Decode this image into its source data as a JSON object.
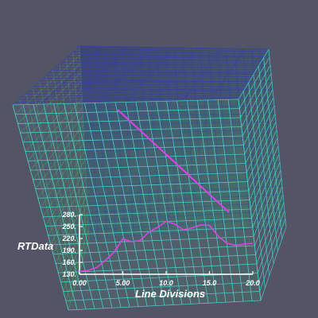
{
  "colors": {
    "background": "#535466",
    "mesh_front": "#48d6d0",
    "mesh_back": "#3a3fa0",
    "mesh_green": "#3fbf4a",
    "probe_line": "#e040e8",
    "plot_curve": "#d946e0",
    "axis": "#ffffff"
  },
  "chart_data": {
    "type": "line",
    "title": "",
    "xlabel": "Line Divisions",
    "ylabel": "RTData",
    "xlim": [
      0,
      20
    ],
    "ylim": [
      130,
      280
    ],
    "x_ticks": [
      "0.00",
      "5.00",
      "10.0",
      "15.0",
      "20.0"
    ],
    "y_ticks": [
      "130.",
      "160.",
      "190.",
      "220.",
      "250.",
      "280."
    ],
    "series": [
      {
        "x": [
          0,
          1,
          2,
          3,
          4,
          5,
          6,
          7,
          8,
          9,
          10,
          11,
          12,
          13,
          14,
          15,
          16,
          17,
          18,
          19,
          20
        ],
        "values": [
          137,
          140,
          147,
          165,
          186,
          219,
          212,
          215,
          236,
          248,
          263,
          256,
          242,
          247,
          254,
          253,
          226,
          208,
          203,
          206,
          208
        ]
      }
    ]
  }
}
